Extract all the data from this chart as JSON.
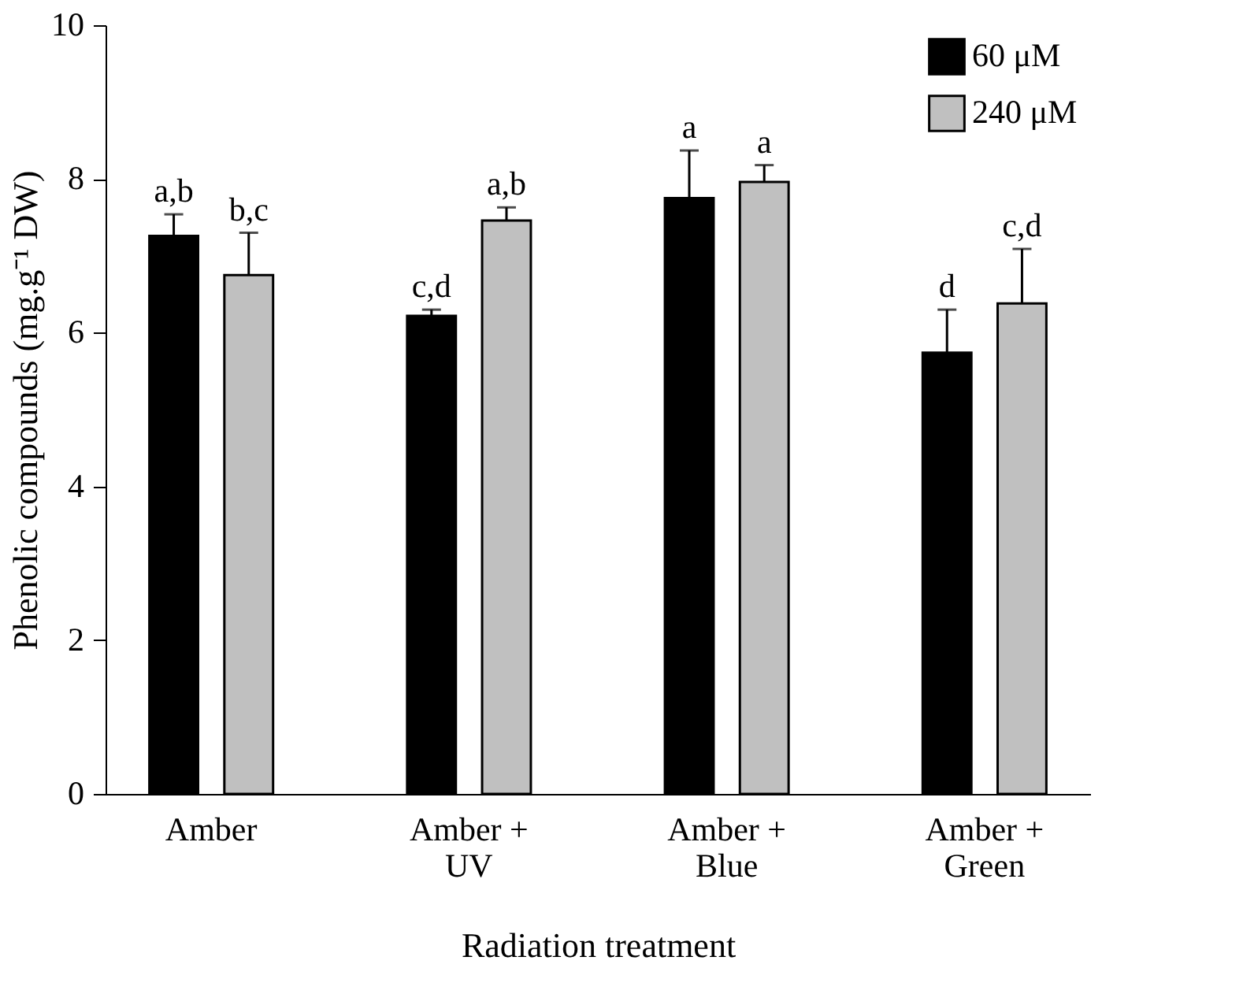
{
  "chart_data": {
    "type": "bar",
    "xlabel": "Radiation treatment",
    "ylabel": "Phenolic compounds (mg.g⁻¹ DW)",
    "categories": [
      "Amber",
      "Amber +\nUV",
      "Amber +\nBlue",
      "Amber +\nGreen"
    ],
    "series": [
      {
        "name": "60 μM",
        "color": "#000000",
        "values": [
          7.26,
          6.22,
          7.75,
          5.74
        ],
        "errors": [
          [
            7.26,
            7.54
          ],
          [
            6.22,
            6.3
          ],
          [
            7.75,
            8.37
          ],
          [
            5.74,
            6.3
          ]
        ],
        "value_labels": [
          "a,b",
          "c,d",
          "a",
          "d"
        ]
      },
      {
        "name": "240 μM",
        "color": "#c0c0c0",
        "values": [
          6.75,
          7.46,
          7.96,
          6.38
        ],
        "errors": [
          [
            6.75,
            7.3
          ],
          [
            7.46,
            7.63
          ],
          [
            7.96,
            8.18
          ],
          [
            6.38,
            7.09
          ]
        ],
        "value_labels": [
          "b,c",
          "a,b",
          "a",
          "c,d"
        ]
      }
    ],
    "ylim": [
      0,
      10
    ],
    "yticks": [
      0,
      2,
      4,
      6,
      8,
      10
    ],
    "grid": false,
    "legend": "top right"
  }
}
